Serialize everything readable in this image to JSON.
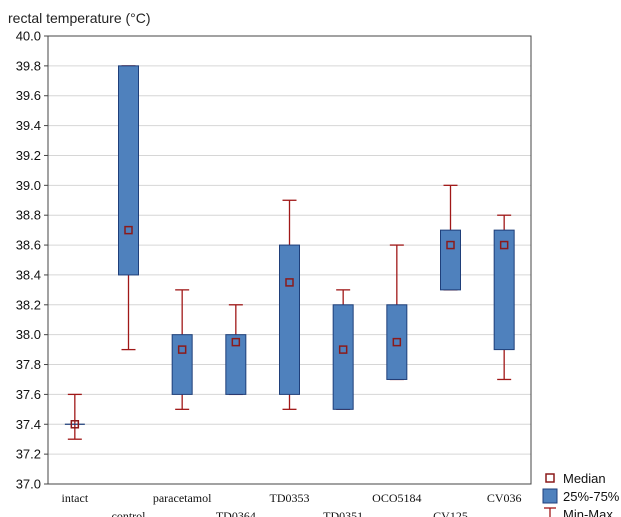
{
  "chart_data": {
    "type": "boxplot",
    "ylabel": "rectal temperature (°C)",
    "ylim": [
      37.0,
      40.0
    ],
    "ytick_step": 0.2,
    "grid": true,
    "legend_position": "bottom-right",
    "colors": {
      "box_fill": "#4f81bd",
      "box_stroke": "#1f3f7a",
      "whisker": "#a01818",
      "median": "#8b1a1a"
    },
    "categories": [
      "intact",
      "control",
      "paracetamol",
      "TD0364",
      "TD0353",
      "TD0351",
      "OCO5184",
      "CV125",
      "CV036"
    ],
    "series": [
      {
        "min": 37.3,
        "q1": 37.4,
        "median": 37.4,
        "q3": 37.4,
        "max": 37.6
      },
      {
        "min": 37.9,
        "q1": 38.4,
        "median": 38.7,
        "q3": 39.8,
        "max": 39.8
      },
      {
        "min": 37.5,
        "q1": 37.6,
        "median": 37.9,
        "q3": 38.0,
        "max": 38.3
      },
      {
        "min": 37.6,
        "q1": 37.6,
        "median": 37.95,
        "q3": 38.0,
        "max": 38.2
      },
      {
        "min": 37.5,
        "q1": 37.6,
        "median": 38.35,
        "q3": 38.6,
        "max": 38.9
      },
      {
        "min": 37.5,
        "q1": 37.5,
        "median": 37.9,
        "q3": 38.2,
        "max": 38.3
      },
      {
        "min": 37.7,
        "q1": 37.7,
        "median": 37.95,
        "q3": 38.2,
        "max": 38.6
      },
      {
        "min": 38.3,
        "q1": 38.3,
        "median": 38.6,
        "q3": 38.7,
        "max": 39.0
      },
      {
        "min": 37.7,
        "q1": 37.9,
        "median": 38.6,
        "q3": 38.7,
        "max": 38.8
      }
    ],
    "legend": [
      {
        "symbol": "median",
        "label": "Median"
      },
      {
        "symbol": "box",
        "label": "25%-75%"
      },
      {
        "symbol": "whisker",
        "label": "Min-Max"
      }
    ]
  }
}
